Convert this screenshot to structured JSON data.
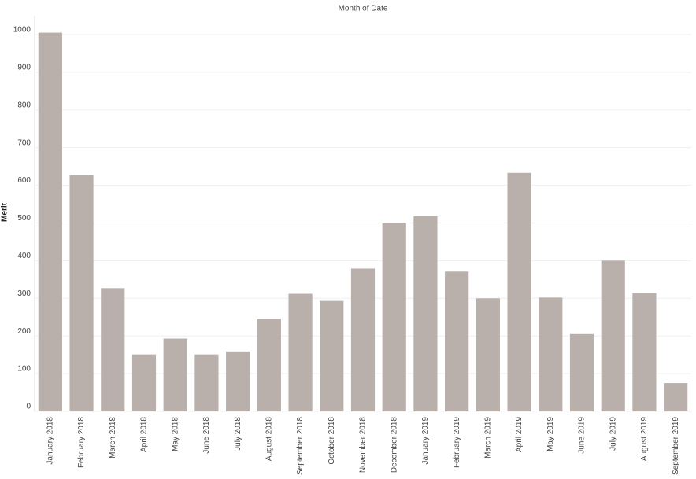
{
  "chart_data": {
    "type": "bar",
    "title": "Month of Date",
    "y_label": "Merit",
    "categories": [
      "January 2018",
      "February 2018",
      "March 2018",
      "April 2018",
      "May 2018",
      "June 2018",
      "July 2018",
      "August 2018",
      "September 2018",
      "October 2018",
      "November 2018",
      "December 2018",
      "January 2019",
      "February 2019",
      "March 2019",
      "April 2019",
      "May 2019",
      "June 2019",
      "July 2019",
      "August 2019",
      "September 2019"
    ],
    "values": [
      1005,
      627,
      327,
      151,
      193,
      151,
      159,
      245,
      312,
      293,
      379,
      499,
      518,
      371,
      300,
      633,
      302,
      205,
      400,
      314,
      75
    ],
    "color": "#bab0ab",
    "ylim": [
      0,
      1050
    ],
    "yticks": [
      0,
      100,
      200,
      300,
      400,
      500,
      600,
      700,
      800,
      900,
      1000
    ],
    "grid": true
  }
}
